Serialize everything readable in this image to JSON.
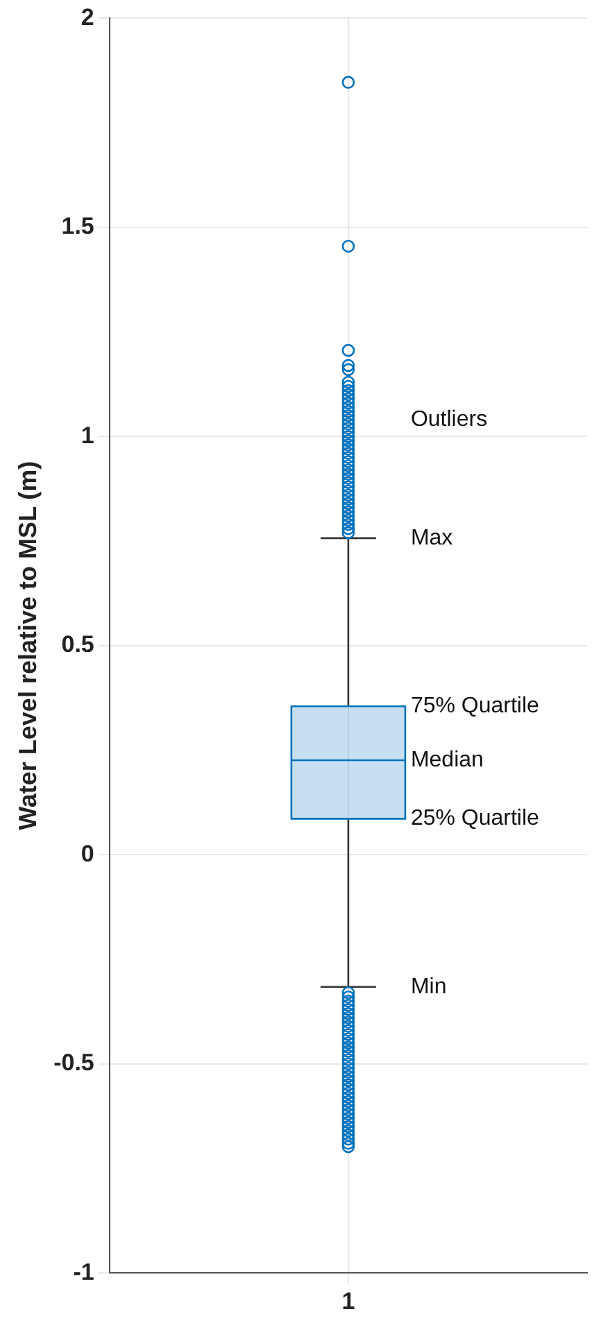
{
  "chart_data": {
    "type": "box",
    "ylabel": "Water Level relative to MSL (m)",
    "categories": [
      "1"
    ],
    "color": "#0072bd",
    "boxes": [
      {
        "low": -0.316,
        "q1": 0.086,
        "median": 0.226,
        "q3": 0.355,
        "high": 0.757,
        "outliers": [
          1.847,
          1.455,
          1.206,
          1.17,
          1.16,
          1.13,
          1.12,
          1.11,
          1.1,
          1.09,
          1.08,
          1.07,
          1.06,
          1.05,
          1.04,
          1.03,
          1.02,
          1.01,
          1.0,
          0.99,
          0.98,
          0.97,
          0.96,
          0.95,
          0.94,
          0.93,
          0.92,
          0.91,
          0.9,
          0.89,
          0.88,
          0.87,
          0.86,
          0.85,
          0.84,
          0.83,
          0.82,
          0.81,
          0.8,
          0.79,
          0.78,
          0.77,
          -0.33,
          -0.34,
          -0.35,
          -0.36,
          -0.37,
          -0.38,
          -0.39,
          -0.4,
          -0.41,
          -0.42,
          -0.43,
          -0.44,
          -0.45,
          -0.46,
          -0.47,
          -0.48,
          -0.49,
          -0.5,
          -0.51,
          -0.52,
          -0.53,
          -0.54,
          -0.55,
          -0.56,
          -0.57,
          -0.58,
          -0.59,
          -0.6,
          -0.61,
          -0.62,
          -0.63,
          -0.64,
          -0.65,
          -0.66,
          -0.67,
          -0.68,
          -0.69,
          -0.698
        ]
      }
    ],
    "ylim": [
      -1,
      2
    ],
    "yticks": [
      -1,
      -0.5,
      0,
      0.5,
      1,
      1.5,
      2
    ],
    "grid": true,
    "marker": "circle",
    "annotations": [
      "Outliers",
      {
        "text": "Max",
        "x": "1",
        "y": 0.757
      },
      {
        "text": "75% Quartile",
        "x": "1",
        "y": 0.355
      },
      {
        "text": "Median",
        "x": "1",
        "y": 0.226
      },
      {
        "text": "25% Quartile",
        "x": "1",
        "y": 0.086
      },
      {
        "text": "Min",
        "x": "1",
        "y": -0.316
      }
    ]
  }
}
